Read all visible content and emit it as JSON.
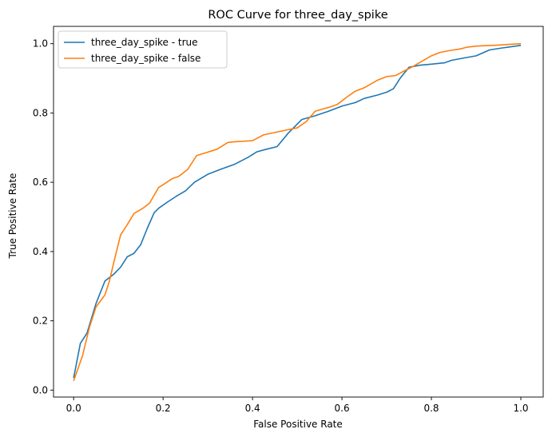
{
  "chart_data": {
    "type": "line",
    "title": "ROC Curve for three_day_spike",
    "xlabel": "False Positive Rate",
    "ylabel": "True Positive Rate",
    "xlim": [
      -0.045,
      1.05
    ],
    "ylim": [
      -0.02,
      1.05
    ],
    "xticks": [
      0.0,
      0.2,
      0.4,
      0.6,
      0.8,
      1.0
    ],
    "yticks": [
      0.0,
      0.2,
      0.4,
      0.6,
      0.8,
      1.0
    ],
    "xtick_labels": [
      "0.0",
      "0.2",
      "0.4",
      "0.6",
      "0.8",
      "1.0"
    ],
    "ytick_labels": [
      "0.0",
      "0.2",
      "0.4",
      "0.6",
      "0.8",
      "1.0"
    ],
    "grid": false,
    "legend_position": "top-left",
    "series": [
      {
        "name": "three_day_spike - true",
        "color": "#1f77b4",
        "x": [
          0.0,
          0.015,
          0.03,
          0.05,
          0.07,
          0.09,
          0.105,
          0.12,
          0.135,
          0.15,
          0.165,
          0.18,
          0.19,
          0.21,
          0.23,
          0.25,
          0.27,
          0.3,
          0.33,
          0.36,
          0.39,
          0.41,
          0.43,
          0.455,
          0.48,
          0.51,
          0.54,
          0.57,
          0.6,
          0.63,
          0.65,
          0.68,
          0.7,
          0.715,
          0.73,
          0.75,
          0.775,
          0.8,
          0.83,
          0.845,
          0.87,
          0.9,
          0.93,
          0.96,
          1.0
        ],
        "y": [
          0.035,
          0.135,
          0.165,
          0.25,
          0.315,
          0.335,
          0.355,
          0.385,
          0.395,
          0.42,
          0.468,
          0.512,
          0.525,
          0.543,
          0.56,
          0.575,
          0.6,
          0.623,
          0.638,
          0.652,
          0.672,
          0.688,
          0.695,
          0.703,
          0.742,
          0.781,
          0.792,
          0.805,
          0.82,
          0.83,
          0.842,
          0.852,
          0.86,
          0.87,
          0.9,
          0.932,
          0.938,
          0.941,
          0.945,
          0.952,
          0.958,
          0.965,
          0.982,
          0.988,
          0.995
        ]
      },
      {
        "name": "three_day_spike - false",
        "color": "#ff7f0e",
        "x": [
          0.0,
          0.02,
          0.035,
          0.05,
          0.07,
          0.08,
          0.09,
          0.105,
          0.12,
          0.135,
          0.155,
          0.17,
          0.19,
          0.2,
          0.22,
          0.235,
          0.255,
          0.275,
          0.29,
          0.32,
          0.345,
          0.36,
          0.4,
          0.425,
          0.455,
          0.48,
          0.5,
          0.52,
          0.54,
          0.575,
          0.59,
          0.61,
          0.63,
          0.65,
          0.68,
          0.7,
          0.72,
          0.74,
          0.76,
          0.78,
          0.8,
          0.82,
          0.84,
          0.865,
          0.88,
          0.9,
          0.95,
          1.0
        ],
        "y": [
          0.027,
          0.1,
          0.18,
          0.24,
          0.275,
          0.315,
          0.37,
          0.448,
          0.478,
          0.51,
          0.525,
          0.54,
          0.585,
          0.593,
          0.61,
          0.617,
          0.637,
          0.677,
          0.683,
          0.695,
          0.715,
          0.717,
          0.72,
          0.737,
          0.745,
          0.752,
          0.757,
          0.775,
          0.805,
          0.818,
          0.825,
          0.845,
          0.863,
          0.873,
          0.895,
          0.905,
          0.908,
          0.922,
          0.935,
          0.95,
          0.965,
          0.975,
          0.98,
          0.985,
          0.99,
          0.993,
          0.996,
          1.0
        ]
      }
    ]
  }
}
